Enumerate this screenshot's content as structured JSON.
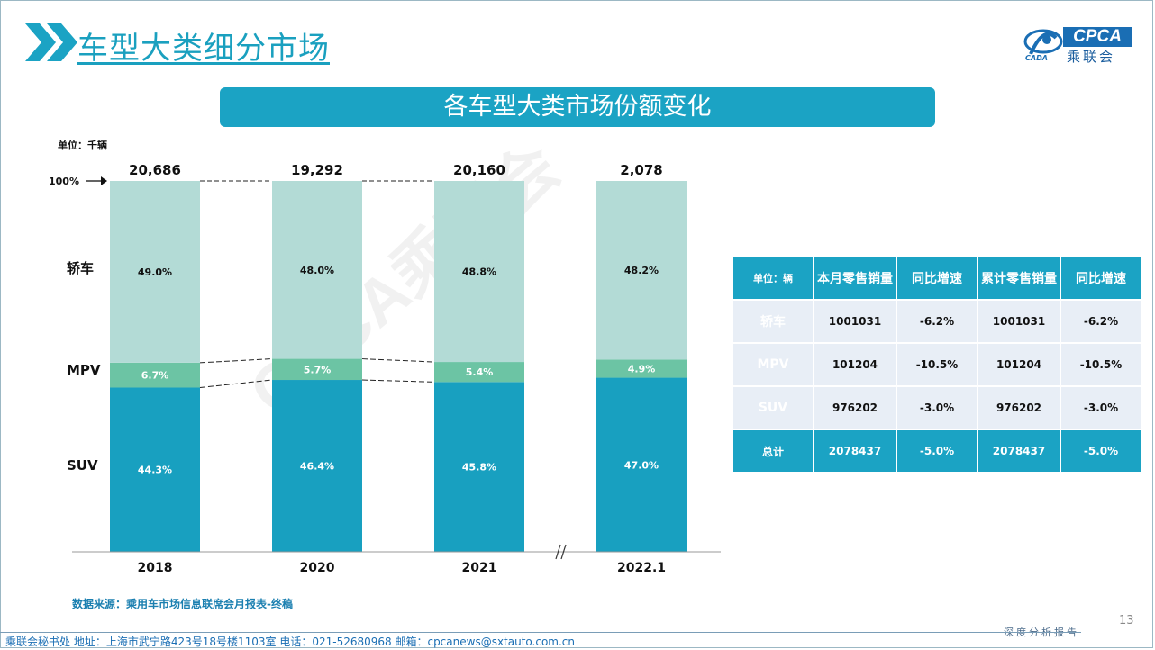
{
  "page": {
    "title": "车型大类细分市场",
    "banner": "各车型大类市场份额变化",
    "unit": "单位：千辆",
    "source": "数据来源：乘用车市场信息联席会月报表-终稿",
    "page_number": "13",
    "report_tag": "深度分析报告",
    "footer": "乘联会秘书处   地址：上海市武宁路423号18号楼1103室    电话：021-52680968     邮箱：cpcanews@sxtauto.com.cn",
    "watermark": "CPCA乘联会"
  },
  "logo": {
    "en": "CPCA",
    "cn": "乘联会",
    "sub": "CADA"
  },
  "colors": {
    "banner": "#1ba3c4",
    "suv": "#18a0c0",
    "mpv": "#6cc4a4",
    "sedan": "#b3dbd6",
    "title": "#1aa0bf"
  },
  "chart_data": {
    "type": "bar",
    "stacked": true,
    "normalized": true,
    "categories": [
      "2018",
      "2020",
      "2021",
      "2022.1"
    ],
    "totals": [
      "20,686",
      "19,292",
      "20,160",
      "2,078"
    ],
    "top_marker": "100%",
    "axis_break_between": [
      "2021",
      "2022.1"
    ],
    "series": [
      {
        "name": "SUV",
        "values": [
          44.3,
          46.4,
          45.8,
          47.0
        ],
        "labels": [
          "44.3%",
          "46.4%",
          "45.8%",
          "47.0%"
        ]
      },
      {
        "name": "MPV",
        "values": [
          6.7,
          5.7,
          5.4,
          4.9
        ],
        "labels": [
          "6.7%",
          "5.7%",
          "5.4%",
          "4.9%"
        ]
      },
      {
        "name": "轿车",
        "values": [
          49.0,
          48.0,
          48.8,
          48.2
        ],
        "labels": [
          "49.0%",
          "48.0%",
          "48.8%",
          "48.2%"
        ]
      }
    ]
  },
  "table": {
    "headers": [
      "单位：辆",
      "本月零售销量",
      "同比增速",
      "累计零售销量",
      "同比增速"
    ],
    "rows": [
      {
        "name": "轿车",
        "month": "1001031",
        "month_yoy": "-6.2%",
        "cum": "1001031",
        "cum_yoy": "-6.2%"
      },
      {
        "name": "MPV",
        "month": "101204",
        "month_yoy": "-10.5%",
        "cum": "101204",
        "cum_yoy": "-10.5%"
      },
      {
        "name": "SUV",
        "month": "976202",
        "month_yoy": "-3.0%",
        "cum": "976202",
        "cum_yoy": "-3.0%"
      }
    ],
    "total": {
      "name": "总计",
      "month": "2078437",
      "month_yoy": "-5.0%",
      "cum": "2078437",
      "cum_yoy": "-5.0%"
    }
  }
}
